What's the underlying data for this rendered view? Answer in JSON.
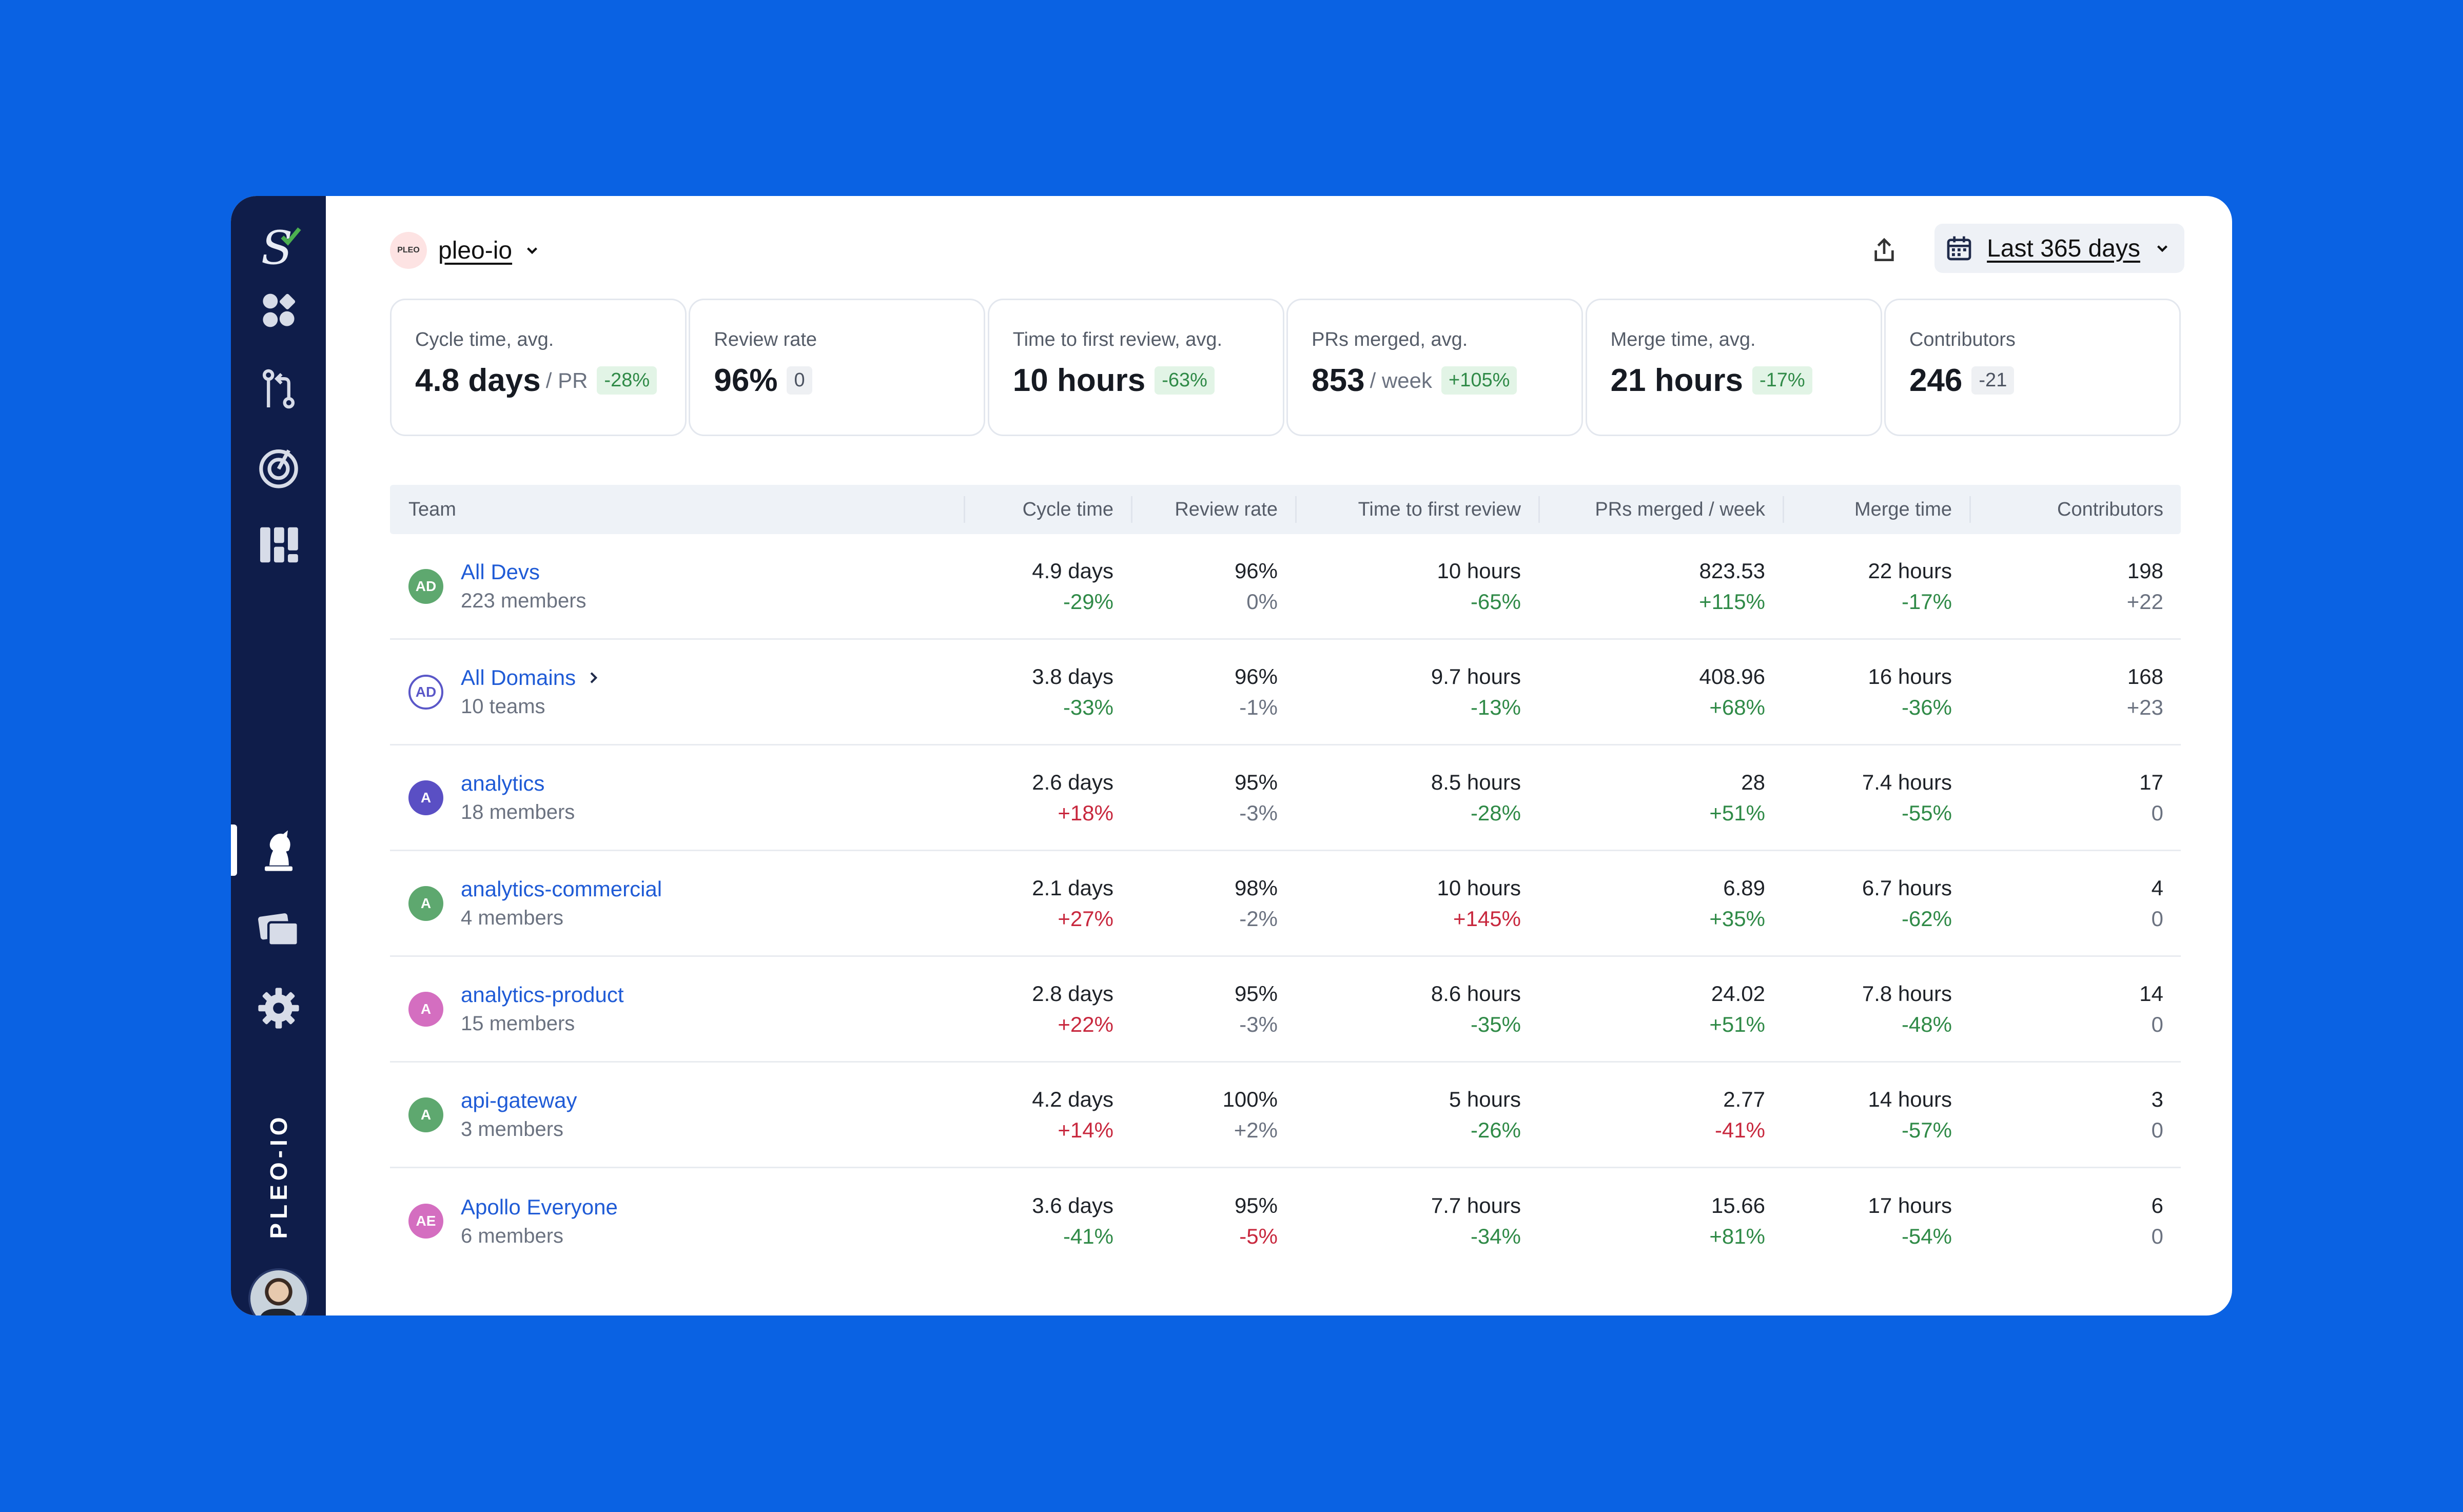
{
  "org": {
    "name": "pleo-io",
    "logo_text": "PLEO",
    "vertical_label": "PLEO-IO"
  },
  "date_range": {
    "label": "Last 365 days"
  },
  "sidebar": {
    "items": [
      "logo-icon",
      "dashboard-icon",
      "pull-requests-icon",
      "target-icon",
      "reports-icon",
      "teams-icon",
      "cards-icon",
      "settings-icon",
      "help-icon",
      "logout-icon"
    ],
    "active": "teams-icon"
  },
  "cards": [
    {
      "title": "Cycle time, avg.",
      "value": "4.8 days",
      "unit": "/ PR",
      "delta": "-28%",
      "delta_style": "green"
    },
    {
      "title": "Review rate",
      "value": "96%",
      "unit": "",
      "delta": "0",
      "delta_style": "gray"
    },
    {
      "title": "Time to first review, avg.",
      "value": "10 hours",
      "unit": "",
      "delta": "-63%",
      "delta_style": "green"
    },
    {
      "title": "PRs merged, avg.",
      "value": "853",
      "unit": "/ week",
      "delta": "+105%",
      "delta_style": "green"
    },
    {
      "title": "Merge time, avg.",
      "value": "21 hours",
      "unit": "",
      "delta": "-17%",
      "delta_style": "green"
    },
    {
      "title": "Contributors",
      "value": "246",
      "unit": "",
      "delta": "-21",
      "delta_style": "gray"
    }
  ],
  "table": {
    "headers": [
      "Team",
      "Cycle time",
      "Review rate",
      "Time to first review",
      "PRs merged / week",
      "Merge time",
      "Contributors"
    ],
    "rows": [
      {
        "initials": "AD",
        "badge": "#5ea86f",
        "outline": false,
        "name": "All Devs",
        "link_chevron": false,
        "sub": "223 members",
        "cycle": [
          "4.9 days",
          "-29%",
          "pos"
        ],
        "review": [
          "96%",
          "0%",
          "neu"
        ],
        "ttfr": [
          "10 hours",
          "-65%",
          "pos"
        ],
        "prs": [
          "823.53",
          "+115%",
          "pos"
        ],
        "merge": [
          "22 hours",
          "-17%",
          "pos"
        ],
        "contrib": [
          "198",
          "+22",
          "neu"
        ]
      },
      {
        "initials": "AD",
        "badge": "#5a57c8",
        "outline": true,
        "name": "All Domains",
        "link_chevron": true,
        "sub": "10 teams",
        "cycle": [
          "3.8 days",
          "-33%",
          "pos"
        ],
        "review": [
          "96%",
          "-1%",
          "neu"
        ],
        "ttfr": [
          "9.7 hours",
          "-13%",
          "pos"
        ],
        "prs": [
          "408.96",
          "+68%",
          "pos"
        ],
        "merge": [
          "16 hours",
          "-36%",
          "pos"
        ],
        "contrib": [
          "168",
          "+23",
          "neu"
        ]
      },
      {
        "initials": "A",
        "badge": "#5a4fc4",
        "outline": false,
        "name": "analytics",
        "link_chevron": false,
        "sub": "18 members",
        "cycle": [
          "2.6 days",
          "+18%",
          "neg"
        ],
        "review": [
          "95%",
          "-3%",
          "neu"
        ],
        "ttfr": [
          "8.5 hours",
          "-28%",
          "pos"
        ],
        "prs": [
          "28",
          "+51%",
          "pos"
        ],
        "merge": [
          "7.4 hours",
          "-55%",
          "pos"
        ],
        "contrib": [
          "17",
          "0",
          "neu"
        ]
      },
      {
        "initials": "A",
        "badge": "#5ea86f",
        "outline": false,
        "name": "analytics-commercial",
        "link_chevron": false,
        "sub": "4 members",
        "cycle": [
          "2.1 days",
          "+27%",
          "neg"
        ],
        "review": [
          "98%",
          "-2%",
          "neu"
        ],
        "ttfr": [
          "10 hours",
          "+145%",
          "neg"
        ],
        "prs": [
          "6.89",
          "+35%",
          "pos"
        ],
        "merge": [
          "6.7 hours",
          "-62%",
          "pos"
        ],
        "contrib": [
          "4",
          "0",
          "neu"
        ]
      },
      {
        "initials": "A",
        "badge": "#d46ec0",
        "outline": false,
        "name": "analytics-product",
        "link_chevron": false,
        "sub": "15 members",
        "cycle": [
          "2.8 days",
          "+22%",
          "neg"
        ],
        "review": [
          "95%",
          "-3%",
          "neu"
        ],
        "ttfr": [
          "8.6 hours",
          "-35%",
          "pos"
        ],
        "prs": [
          "24.02",
          "+51%",
          "pos"
        ],
        "merge": [
          "7.8 hours",
          "-48%",
          "pos"
        ],
        "contrib": [
          "14",
          "0",
          "neu"
        ]
      },
      {
        "initials": "A",
        "badge": "#5ea86f",
        "outline": false,
        "name": "api-gateway",
        "link_chevron": false,
        "sub": "3 members",
        "cycle": [
          "4.2 days",
          "+14%",
          "neg"
        ],
        "review": [
          "100%",
          "+2%",
          "neu"
        ],
        "ttfr": [
          "5 hours",
          "-26%",
          "pos"
        ],
        "prs": [
          "2.77",
          "-41%",
          "neg"
        ],
        "merge": [
          "14 hours",
          "-57%",
          "pos"
        ],
        "contrib": [
          "3",
          "0",
          "neu"
        ]
      },
      {
        "initials": "AE",
        "badge": "#d46ec0",
        "outline": false,
        "name": "Apollo Everyone",
        "link_chevron": false,
        "sub": "6 members",
        "cycle": [
          "3.6 days",
          "-41%",
          "pos"
        ],
        "review": [
          "95%",
          "-5%",
          "neg"
        ],
        "ttfr": [
          "7.7 hours",
          "-34%",
          "pos"
        ],
        "prs": [
          "15.66",
          "+81%",
          "pos"
        ],
        "merge": [
          "17 hours",
          "-54%",
          "pos"
        ],
        "contrib": [
          "6",
          "0",
          "neu"
        ]
      }
    ]
  }
}
